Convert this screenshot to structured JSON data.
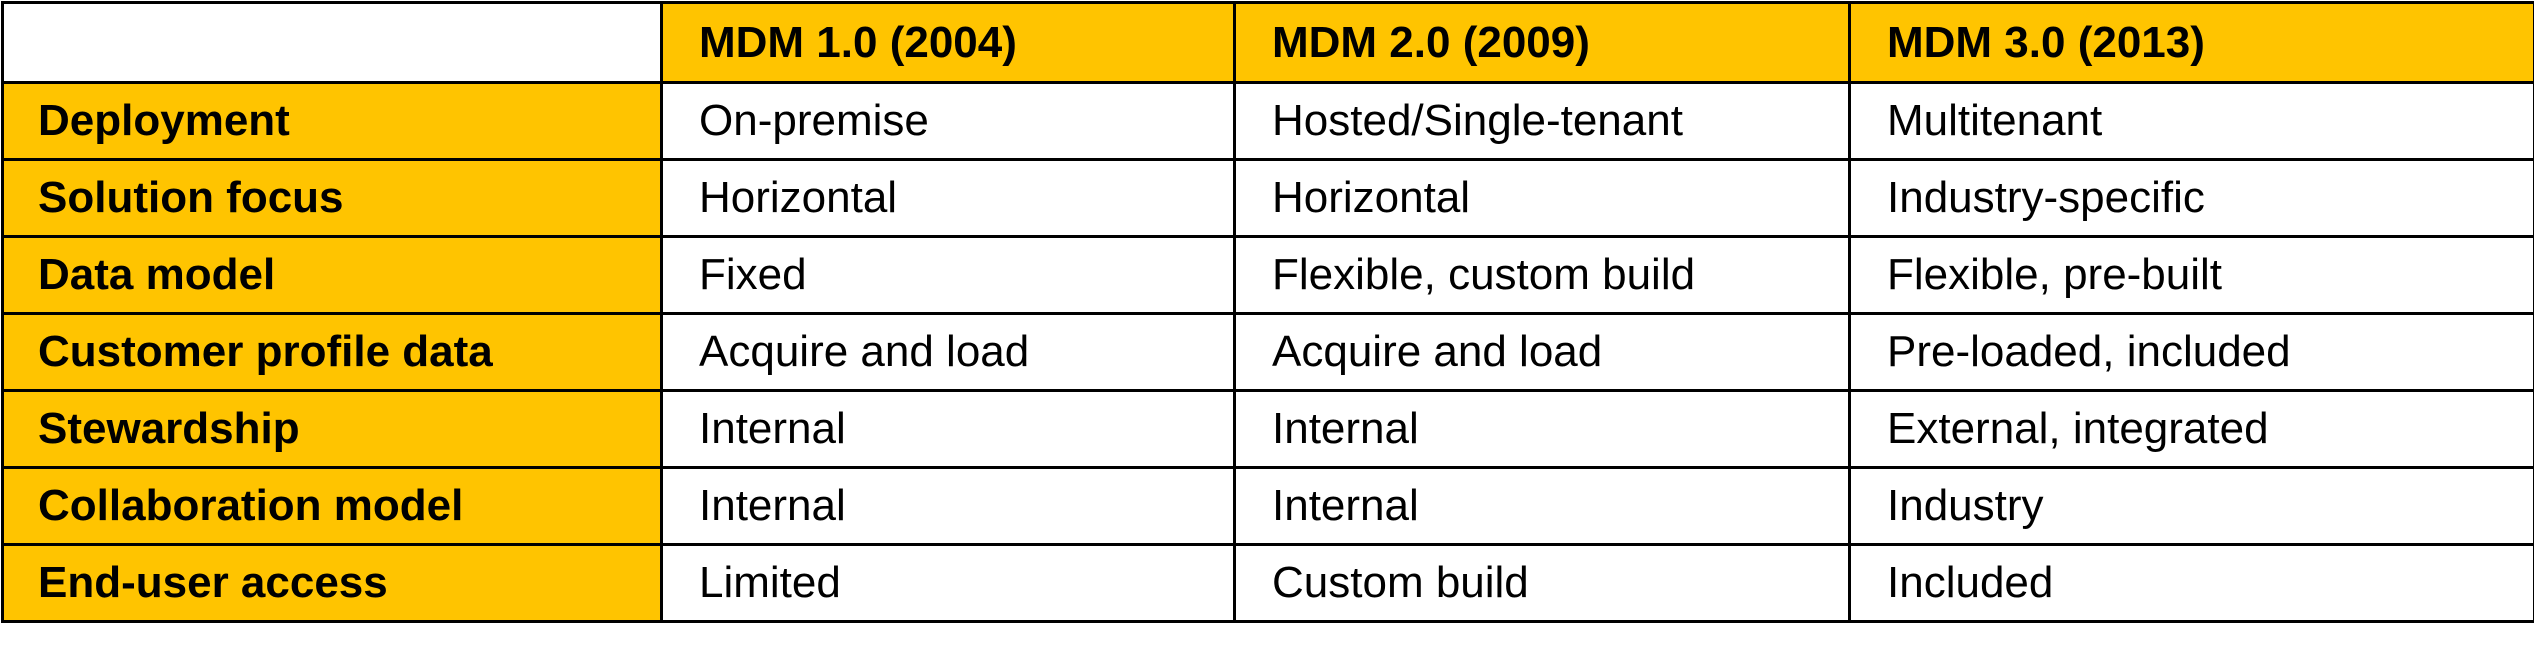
{
  "table": {
    "header": [
      "MDM 1.0 (2004)",
      "MDM 2.0 (2009)",
      "MDM 3.0 (2013)"
    ],
    "rows": [
      [
        "Deployment",
        "On-premise",
        "Hosted/Single-tenant",
        "Multitenant"
      ],
      [
        "Solution focus",
        "Horizontal",
        "Horizontal",
        "Industry-specific"
      ],
      [
        "Data model",
        "Fixed",
        "Flexible, custom build",
        "Flexible, pre-built"
      ],
      [
        "Customer profile data",
        "Acquire and load",
        "Acquire and load",
        "Pre-loaded, included"
      ],
      [
        "Stewardship",
        "Internal",
        "Internal",
        "External, integrated"
      ],
      [
        "Collaboration model",
        "Internal",
        "Internal",
        "Industry"
      ],
      [
        "End-user access",
        "Limited",
        "Custom build",
        "Included"
      ]
    ]
  }
}
